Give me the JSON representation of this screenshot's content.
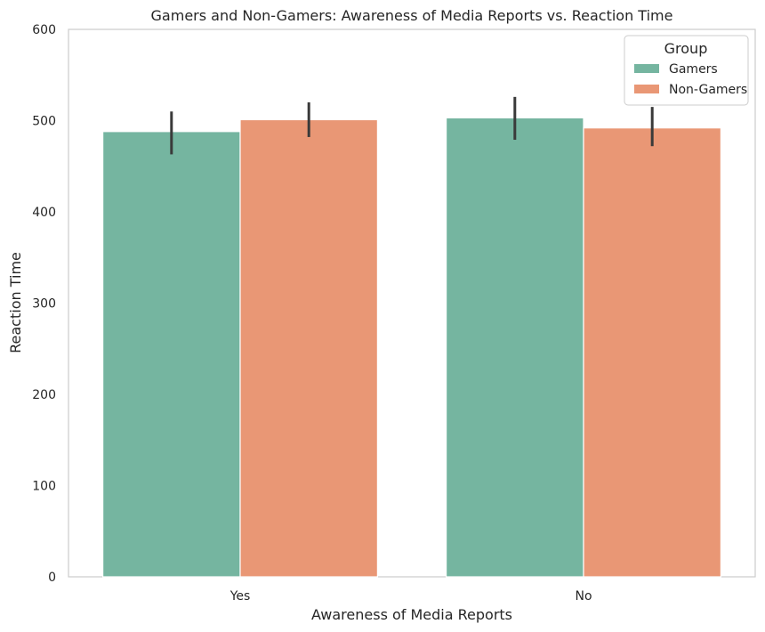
{
  "chart_data": {
    "type": "bar",
    "title": "Gamers and Non-Gamers: Awareness of Media Reports vs. Reaction Time",
    "xlabel": "Awareness of Media Reports",
    "ylabel": "Reaction Time",
    "categories": [
      "Yes",
      "No"
    ],
    "ylim": [
      0,
      600
    ],
    "yticks": [
      0,
      100,
      200,
      300,
      400,
      500,
      600
    ],
    "grid": false,
    "legend": {
      "title": "Group",
      "placement": "top-right"
    },
    "series": [
      {
        "name": "Gamers",
        "color": "#75b5a0",
        "values": [
          488,
          503
        ],
        "ci_low": [
          463,
          479
        ],
        "ci_high": [
          510,
          526
        ]
      },
      {
        "name": "Non-Gamers",
        "color": "#e99775",
        "values": [
          501,
          492
        ],
        "ci_low": [
          482,
          472
        ],
        "ci_high": [
          520,
          515
        ]
      }
    ],
    "errorbar_color": "#3a3a3a"
  }
}
